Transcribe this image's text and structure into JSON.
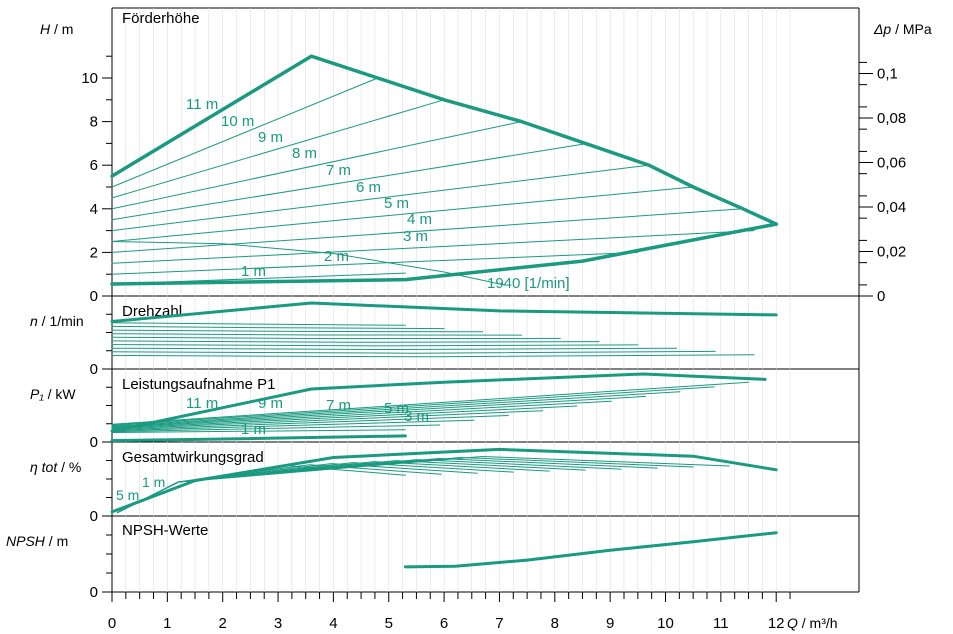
{
  "chart_data": {
    "type": "line",
    "accent_color": "#1a9a80",
    "x_axis": {
      "label_italic": "Q",
      "label_unit": " / m³/h",
      "min": 0,
      "max": 12.4,
      "ticks": [
        "0",
        "1",
        "2",
        "3",
        "4",
        "5",
        "6",
        "7",
        "8",
        "9",
        "10",
        "11",
        "12"
      ]
    },
    "panels": [
      {
        "id": "head",
        "title": "Förderhöhe",
        "ylabel_italic": "H",
        "ylabel_unit": " / m",
        "ylim": [
          0,
          11.5
        ],
        "yticks": [
          "0",
          "2",
          "4",
          "6",
          "8",
          "10"
        ],
        "right_label_italic": "Δp",
        "right_label_unit": " / MPa",
        "right_ticks": [
          "0",
          "0,02",
          "0,04",
          "0,06",
          "0,08",
          "0,1"
        ],
        "envelope": {
          "upper": [
            [
              0,
              5.5
            ],
            [
              3.6,
              11
            ],
            [
              4.8,
              10
            ],
            [
              6.0,
              9
            ],
            [
              7.4,
              8
            ],
            [
              9.7,
              6
            ],
            [
              10.5,
              5
            ],
            [
              11.4,
              4
            ],
            [
              12,
              3.3
            ]
          ],
          "lower": [
            [
              0,
              0.55
            ],
            [
              5.3,
              0.75
            ],
            [
              8.5,
              1.6
            ],
            [
              12,
              3.3
            ]
          ]
        },
        "setpoint_lines": [
          {
            "label": "11 m",
            "h0": 5.5,
            "end": [
              3.6,
              11
            ]
          },
          {
            "label": "10 m",
            "h0": 5.0,
            "end": [
              4.8,
              10
            ]
          },
          {
            "label": "9 m",
            "h0": 4.5,
            "end": [
              6.0,
              9
            ]
          },
          {
            "label": "8 m",
            "h0": 4.0,
            "end": [
              7.4,
              8
            ]
          },
          {
            "label": "7 m",
            "h0": 3.5,
            "end": [
              8.6,
              7
            ]
          },
          {
            "label": "6 m",
            "h0": 3.0,
            "end": [
              9.7,
              6
            ]
          },
          {
            "label": "5 m",
            "h0": 2.5,
            "end": [
              10.5,
              5
            ]
          },
          {
            "label": "4 m",
            "h0": 2.0,
            "end": [
              11.4,
              4
            ]
          },
          {
            "label": "3 m",
            "h0": 1.5,
            "end": [
              11.6,
              3
            ]
          },
          {
            "label": "2 m",
            "h0": 1.0,
            "end": [
              9.5,
              2
            ]
          },
          {
            "label": "1 m",
            "h0": 0.55,
            "end": [
              5.3,
              1.05
            ]
          }
        ],
        "curve_1940": [
          [
            0,
            2.5
          ],
          [
            2,
            2.4
          ],
          [
            4,
            1.95
          ],
          [
            6,
            1.1
          ],
          [
            7.1,
            0.5
          ]
        ],
        "annotation_1940": "1940 [1/min]"
      },
      {
        "id": "speed",
        "title": "Drehzahl",
        "ylabel_italic": "n",
        "ylabel_unit": " / 1/min"
      },
      {
        "id": "power",
        "title": "Leistungsaufnahme P1",
        "ylabel_italic": "P₁",
        "ylabel_unit": " / kW",
        "curve_labels": [
          "11 m",
          "9 m",
          "7 m",
          "5 m",
          "3 m",
          "1 m"
        ]
      },
      {
        "id": "efficiency",
        "title": "Gesamtwirkungsgrad",
        "ylabel_italic": "η tot",
        "ylabel_unit": " / %",
        "curve_labels": [
          "5 m",
          "1 m"
        ]
      },
      {
        "id": "npsh",
        "title": "NPSH-Werte",
        "ylabel_italic": "NPSH",
        "ylabel_unit": " / m",
        "curve": [
          [
            5.3,
            0.33
          ],
          [
            6.2,
            0.34
          ],
          [
            7.5,
            0.42
          ],
          [
            9,
            0.55
          ],
          [
            10.5,
            0.66
          ],
          [
            12,
            0.78
          ]
        ]
      }
    ]
  }
}
